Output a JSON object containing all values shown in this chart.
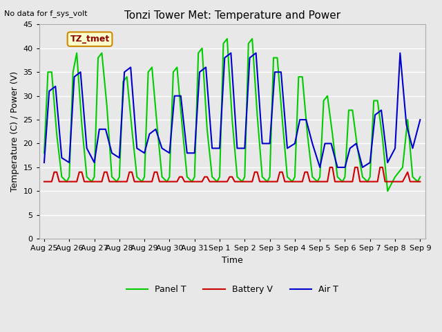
{
  "title": "Tonzi Tower Met: Temperature and Power",
  "topleft_text": "No data for f_sys_volt",
  "ylabel": "Temperature (C) / Power (V)",
  "xlabel": "Time",
  "ylim": [
    0,
    45
  ],
  "yticks": [
    0,
    5,
    10,
    15,
    20,
    25,
    30,
    35,
    40,
    45
  ],
  "x_labels": [
    "Aug 25",
    "Aug 26",
    "Aug 27",
    "Aug 28",
    "Aug 29",
    "Aug 30",
    "Aug 31",
    "Sep 1",
    "Sep 2",
    "Sep 3",
    "Sep 4",
    "Sep 5",
    "Sep 6",
    "Sep 7",
    "Sep 8",
    "Sep 9"
  ],
  "annotation_box": "TZ_tmet",
  "bg_color": "#e8e8e8",
  "plot_bg_color": "#e8e8e8",
  "grid_color": "#ffffff",
  "legend_items": [
    {
      "label": "Panel T",
      "color": "#00cc00",
      "lw": 1.5
    },
    {
      "label": "Battery V",
      "color": "#cc0000",
      "lw": 1.5
    },
    {
      "label": "Air T",
      "color": "#0000cc",
      "lw": 1.5
    }
  ],
  "panel_t_x": [
    0,
    0.15,
    0.3,
    0.5,
    0.7,
    0.9,
    1.0,
    1.15,
    1.3,
    1.5,
    1.7,
    1.9,
    2.0,
    2.15,
    2.3,
    2.5,
    2.7,
    2.9,
    3.0,
    3.15,
    3.3,
    3.5,
    3.7,
    3.9,
    4.0,
    4.15,
    4.3,
    4.5,
    4.7,
    4.9,
    5.0,
    5.15,
    5.3,
    5.5,
    5.7,
    5.9,
    6.0,
    6.15,
    6.3,
    6.5,
    6.7,
    6.9,
    7.0,
    7.15,
    7.3,
    7.5,
    7.7,
    7.9,
    8.0,
    8.15,
    8.3,
    8.5,
    8.7,
    8.9,
    9.0,
    9.15,
    9.3,
    9.5,
    9.7,
    9.9,
    10.0,
    10.15,
    10.3,
    10.5,
    10.7,
    10.9,
    11.0,
    11.15,
    11.3,
    11.5,
    11.7,
    11.9,
    12.0,
    12.15,
    12.3,
    12.5,
    12.7,
    12.9,
    13.0,
    13.15,
    13.3,
    13.5,
    13.7,
    13.9,
    14.0,
    14.15,
    14.3,
    14.5,
    14.7,
    14.9,
    15.0
  ],
  "panel_t_y": [
    18,
    35,
    35,
    22,
    13,
    12,
    13,
    35,
    39,
    24,
    13,
    12,
    13,
    38,
    39,
    28,
    13,
    12,
    13,
    33,
    34,
    23,
    13,
    12,
    13,
    35,
    36,
    24,
    13,
    12,
    13,
    35,
    36,
    24,
    13,
    12,
    13,
    39,
    40,
    23,
    13,
    12,
    13,
    41,
    42,
    25,
    13,
    12,
    13,
    41,
    42,
    26,
    13,
    12,
    13,
    38,
    38,
    25,
    13,
    12,
    13,
    34,
    34,
    22,
    13,
    12,
    13,
    29,
    30,
    22,
    13,
    12,
    13,
    27,
    27,
    19,
    13,
    12,
    13,
    29,
    29,
    21,
    10,
    12,
    13,
    14,
    15,
    25,
    13,
    12,
    13
  ],
  "air_t_x": [
    0,
    0.2,
    0.45,
    0.7,
    1.0,
    1.2,
    1.45,
    1.7,
    2.0,
    2.2,
    2.45,
    2.7,
    3.0,
    3.2,
    3.45,
    3.7,
    4.0,
    4.2,
    4.45,
    4.7,
    5.0,
    5.2,
    5.45,
    5.7,
    6.0,
    6.2,
    6.45,
    6.7,
    7.0,
    7.2,
    7.45,
    7.7,
    8.0,
    8.2,
    8.45,
    8.7,
    9.0,
    9.2,
    9.45,
    9.7,
    10.0,
    10.2,
    10.45,
    10.7,
    11.0,
    11.2,
    11.45,
    11.7,
    12.0,
    12.2,
    12.45,
    12.7,
    13.0,
    13.2,
    13.45,
    13.7,
    14.0,
    14.2,
    14.45,
    14.7,
    15.0
  ],
  "air_t_y": [
    16,
    31,
    32,
    17,
    16,
    34,
    35,
    19,
    16,
    23,
    23,
    18,
    17,
    35,
    36,
    19,
    18,
    22,
    23,
    19,
    18,
    30,
    30,
    18,
    18,
    35,
    36,
    19,
    19,
    38,
    39,
    19,
    19,
    38,
    39,
    20,
    20,
    35,
    35,
    19,
    20,
    25,
    25,
    20,
    15,
    20,
    20,
    15,
    15,
    19,
    20,
    15,
    16,
    26,
    27,
    16,
    19,
    39,
    24,
    19,
    25
  ],
  "battery_v_x": [
    0,
    0.3,
    0.4,
    0.5,
    0.6,
    1.0,
    1.3,
    1.4,
    1.5,
    1.6,
    2.0,
    2.3,
    2.4,
    2.5,
    2.6,
    3.0,
    3.3,
    3.4,
    3.5,
    3.6,
    4.0,
    4.3,
    4.4,
    4.5,
    4.6,
    5.0,
    5.3,
    5.4,
    5.5,
    5.6,
    6.0,
    6.3,
    6.4,
    6.5,
    6.6,
    7.0,
    7.3,
    7.4,
    7.5,
    7.6,
    8.0,
    8.3,
    8.4,
    8.5,
    8.6,
    9.0,
    9.3,
    9.4,
    9.5,
    9.6,
    10.0,
    10.3,
    10.4,
    10.5,
    10.6,
    11.0,
    11.3,
    11.4,
    11.5,
    11.6,
    12.0,
    12.3,
    12.4,
    12.5,
    12.6,
    13.0,
    13.3,
    13.4,
    13.5,
    13.6,
    14.0,
    14.3,
    14.4,
    14.5,
    14.6,
    15.0
  ],
  "battery_v_y": [
    12,
    12,
    14,
    14,
    12,
    12,
    12,
    14,
    14,
    12,
    12,
    12,
    14,
    14,
    12,
    12,
    12,
    14,
    14,
    12,
    12,
    12,
    14,
    14,
    12,
    12,
    12,
    13,
    13,
    12,
    12,
    12,
    13,
    13,
    12,
    12,
    12,
    13,
    13,
    12,
    12,
    12,
    14,
    14,
    12,
    12,
    12,
    14,
    14,
    12,
    12,
    12,
    14,
    14,
    12,
    12,
    12,
    15,
    15,
    12,
    12,
    12,
    15,
    15,
    12,
    12,
    12,
    15,
    15,
    12,
    12,
    12,
    13,
    14,
    12,
    12
  ]
}
